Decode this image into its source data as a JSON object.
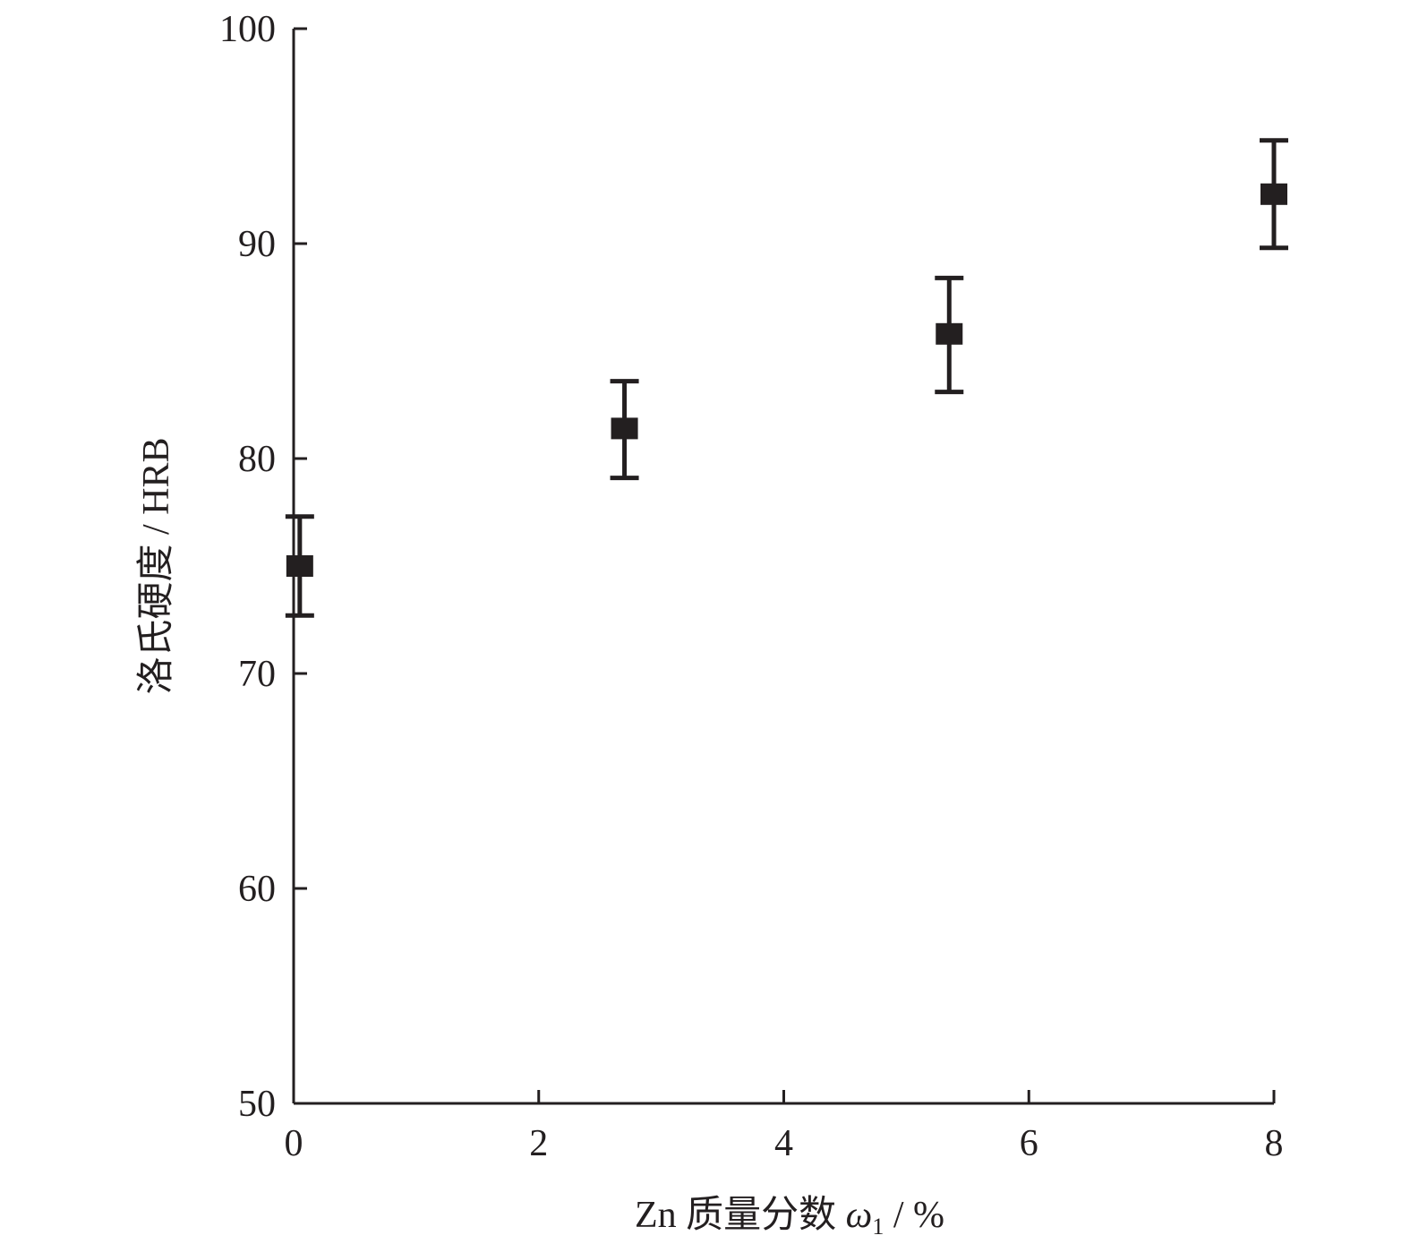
{
  "chart_data": {
    "type": "scatter",
    "title": "",
    "xlabel": {
      "prefix": "Zn 质量分数 ",
      "symbol": "ω",
      "subscript": "1",
      "suffix": " / %"
    },
    "ylabel": "洛氏硬度 / HRB",
    "xlim": [
      0,
      8
    ],
    "ylim": [
      50,
      100
    ],
    "x_ticks": [
      "0",
      "2",
      "4",
      "6",
      "8"
    ],
    "y_ticks": [
      "50",
      "60",
      "70",
      "80",
      "90",
      "100"
    ],
    "grid": false,
    "legend": "none",
    "series": [
      {
        "marker": "square",
        "color": "#231f20",
        "points": [
          {
            "x": 0.05,
            "y": 75.0,
            "y_low": 72.7,
            "y_high": 77.3
          },
          {
            "x": 2.7,
            "y": 81.4,
            "y_low": 79.1,
            "y_high": 83.6
          },
          {
            "x": 5.35,
            "y": 85.8,
            "y_low": 83.1,
            "y_high": 88.4
          },
          {
            "x": 8.0,
            "y": 92.3,
            "y_low": 89.8,
            "y_high": 94.8
          }
        ]
      }
    ]
  }
}
